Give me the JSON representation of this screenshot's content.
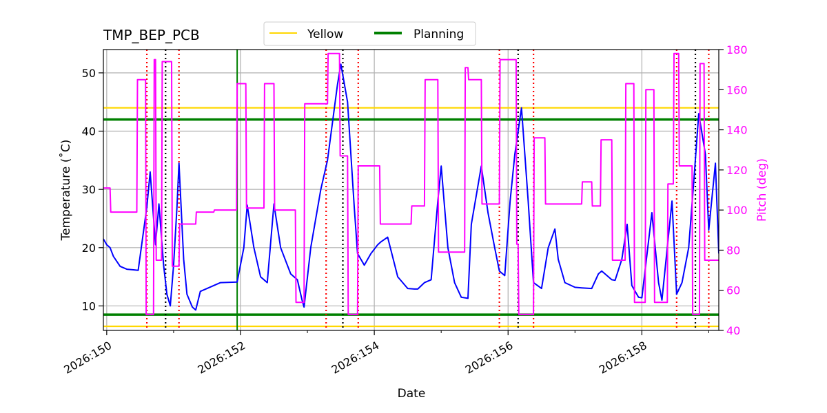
{
  "chart_data": {
    "type": "line",
    "title": "TMP_BEP_PCB",
    "xlabel": "Date",
    "ylabel": "Temperature ($^\\circ$C)",
    "ylabel_display": "Temperature (˚C)",
    "y2label": "Pitch (deg)",
    "xlim": [
      149.95,
      159.15
    ],
    "ylim": [
      5.8,
      54.0
    ],
    "y2lim": [
      40,
      180
    ],
    "grid": true,
    "legend_position": "top-center",
    "xticks": [
      {
        "value": 150,
        "label": "2026:150"
      },
      {
        "value": 152,
        "label": "2026:152"
      },
      {
        "value": 154,
        "label": "2026:154"
      },
      {
        "value": 156,
        "label": "2026:156"
      },
      {
        "value": 158,
        "label": "2026:158"
      }
    ],
    "yticks": [
      10,
      20,
      30,
      40,
      50
    ],
    "y2ticks": [
      40,
      60,
      80,
      100,
      120,
      140,
      160,
      180
    ],
    "legend": [
      {
        "name": "Yellow",
        "color": "#ffd700"
      },
      {
        "name": "Planning",
        "color": "#008000"
      }
    ],
    "limits": {
      "yellow": [
        6.5,
        44.0
      ],
      "planning": [
        8.5,
        42.0
      ]
    },
    "now_line": {
      "x": 151.95,
      "color": "#008000"
    },
    "red_dotted_x": [
      150.6,
      151.08,
      153.28,
      153.76,
      155.87,
      156.38,
      158.52,
      159.0
    ],
    "black_dotted_x": [
      150.88,
      153.53,
      156.15,
      158.8
    ],
    "series": [
      {
        "axis": "left",
        "color": "#0000ff",
        "x": [
          149.95,
          150.0,
          150.05,
          150.1,
          150.2,
          150.3,
          150.4,
          150.47,
          150.6,
          150.65,
          150.73,
          150.78,
          150.85,
          150.9,
          150.95,
          151.0,
          151.05,
          151.08,
          151.15,
          151.2,
          151.28,
          151.33,
          151.4,
          151.5,
          151.6,
          151.7,
          151.95,
          152.05,
          152.1,
          152.2,
          152.3,
          152.4,
          152.5,
          152.6,
          152.75,
          152.85,
          152.92,
          152.95,
          153.05,
          153.2,
          153.3,
          153.45,
          153.5,
          153.6,
          153.7,
          153.75,
          153.85,
          153.95,
          154.05,
          154.1,
          154.2,
          154.35,
          154.5,
          154.6,
          154.65,
          154.75,
          154.85,
          154.95,
          155.0,
          155.1,
          155.2,
          155.3,
          155.4,
          155.45,
          155.6,
          155.7,
          155.8,
          155.87,
          155.95,
          156.03,
          156.1,
          156.2,
          156.3,
          156.38,
          156.5,
          156.6,
          156.7,
          156.75,
          156.85,
          157.0,
          157.1,
          157.25,
          157.35,
          157.4,
          157.55,
          157.6,
          157.7,
          157.78,
          157.85,
          157.95,
          158.0,
          158.15,
          158.25,
          158.3,
          158.45,
          158.52,
          158.6,
          158.7,
          158.78,
          158.85,
          158.95,
          159.0,
          159.1,
          159.15
        ],
        "y": [
          21.5,
          20.5,
          20.0,
          18.5,
          16.8,
          16.3,
          16.2,
          16.1,
          27.0,
          33.0,
          20.5,
          27.5,
          17.0,
          12.0,
          10.0,
          17.0,
          27.0,
          34.5,
          18.0,
          12.0,
          9.8,
          9.3,
          12.5,
          13.0,
          13.5,
          14.0,
          14.1,
          20.0,
          27.3,
          20.0,
          15.0,
          14.0,
          27.5,
          20.0,
          15.5,
          14.5,
          11.0,
          9.8,
          20.0,
          30.0,
          35.0,
          48.0,
          51.5,
          45.0,
          27.0,
          19.0,
          17.0,
          19.0,
          20.5,
          21.0,
          21.8,
          15.0,
          13.0,
          12.9,
          12.9,
          14.0,
          14.5,
          28.0,
          34.0,
          20.0,
          14.0,
          11.5,
          11.3,
          24.0,
          34.0,
          26.0,
          20.0,
          16.0,
          15.2,
          28.0,
          36.0,
          44.0,
          28.0,
          14.0,
          13.0,
          20.0,
          23.2,
          18.0,
          14.0,
          13.2,
          13.1,
          13.0,
          15.5,
          16.0,
          14.5,
          14.4,
          18.0,
          24.0,
          13.5,
          11.5,
          11.4,
          26.0,
          14.0,
          11.0,
          28.0,
          12.0,
          14.0,
          20.0,
          32.0,
          43.0,
          36.0,
          23.0,
          34.5,
          19.0
        ]
      },
      {
        "axis": "right",
        "color": "#ff00ff",
        "x": [
          149.95,
          150.05,
          150.06,
          150.45,
          150.46,
          150.58,
          150.59,
          150.7,
          150.71,
          150.73,
          150.74,
          150.77,
          150.78,
          150.82,
          150.83,
          150.97,
          150.98,
          151.08,
          151.09,
          151.33,
          151.34,
          151.6,
          151.61,
          151.94,
          151.95,
          152.08,
          152.09,
          152.35,
          152.36,
          152.5,
          152.51,
          152.82,
          152.83,
          152.95,
          152.96,
          153.3,
          153.31,
          153.48,
          153.49,
          153.6,
          153.61,
          153.75,
          153.76,
          154.08,
          154.09,
          154.55,
          154.56,
          154.75,
          154.76,
          154.95,
          154.96,
          155.35,
          155.36,
          155.4,
          155.41,
          155.6,
          155.61,
          155.87,
          155.88,
          156.12,
          156.13,
          156.15,
          156.16,
          156.38,
          156.39,
          156.55,
          156.56,
          157.1,
          157.11,
          157.25,
          157.26,
          157.38,
          157.39,
          157.55,
          157.56,
          157.75,
          157.76,
          157.88,
          157.89,
          158.05,
          158.06,
          158.18,
          158.19,
          158.38,
          158.39,
          158.47,
          158.48,
          158.55,
          158.56,
          158.75,
          158.76,
          158.86,
          158.87,
          158.93,
          158.94,
          159.0,
          159.01,
          159.15
        ],
        "y": [
          111,
          111,
          99,
          99,
          165,
          165,
          48,
          48,
          175,
          175,
          75,
          75,
          75,
          75,
          174,
          174,
          72,
          72,
          93,
          93,
          99,
          99,
          100,
          100,
          163,
          163,
          101,
          101,
          163,
          163,
          100,
          100,
          54,
          54,
          153,
          153,
          178,
          178,
          127,
          127,
          48,
          48,
          122,
          122,
          93,
          93,
          102,
          102,
          165,
          165,
          79,
          79,
          171,
          171,
          165,
          165,
          103,
          103,
          175,
          175,
          83,
          83,
          48,
          48,
          136,
          136,
          103,
          103,
          114,
          114,
          102,
          102,
          135,
          135,
          75,
          75,
          163,
          163,
          54,
          54,
          160,
          160,
          54,
          54,
          113,
          113,
          178,
          178,
          122,
          122,
          48,
          48,
          173,
          173,
          75,
          75,
          75,
          75
        ]
      }
    ]
  }
}
